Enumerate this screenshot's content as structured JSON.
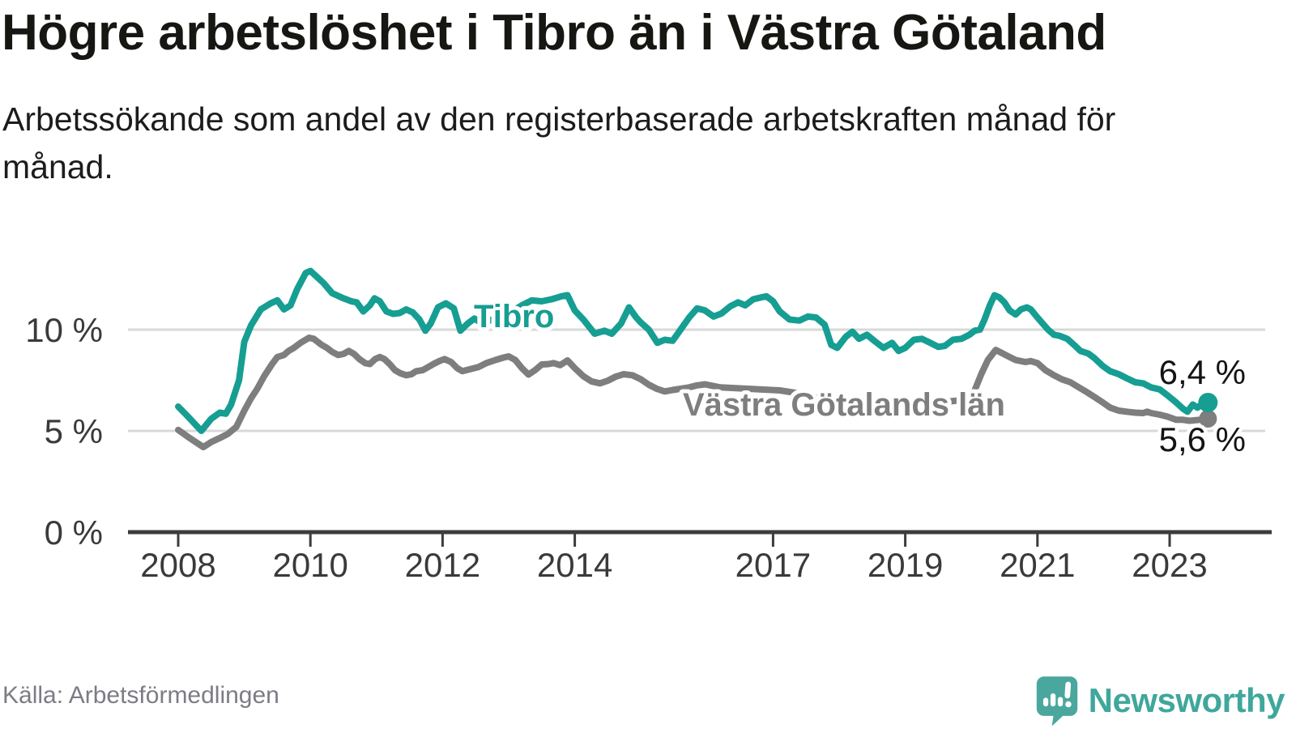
{
  "header": {
    "title": "Högre arbetslöshet i Tibro än i Västra Götaland",
    "subtitle": "Arbetssökande som andel av den registerbaserade arbetskraften månad för månad."
  },
  "chart_data": {
    "type": "line",
    "title": "Högre arbetslöshet i Tibro än i Västra Götaland",
    "xlabel": "",
    "ylabel": "Arbetssökande som andel av den registerbaserade arbetskraften (%)",
    "unit": "%",
    "grid": "horizontal",
    "legend_position": "labels-on-lines",
    "xlim": [
      2007.7,
      2024.0
    ],
    "ylim": [
      0,
      13.5
    ],
    "x_ticks": [
      {
        "year": 2008,
        "label": "2008"
      },
      {
        "year": 2010,
        "label": "2010"
      },
      {
        "year": 2012,
        "label": "2012"
      },
      {
        "year": 2014,
        "label": "2014"
      },
      {
        "year": 2017,
        "label": "2017"
      },
      {
        "year": 2019,
        "label": "2019"
      },
      {
        "year": 2021,
        "label": "2021"
      },
      {
        "year": 2023,
        "label": "2023"
      }
    ],
    "y_ticks": [
      {
        "value": 0,
        "label": "0 %"
      },
      {
        "value": 5,
        "label": "5 %"
      },
      {
        "value": 10,
        "label": "10 %"
      }
    ],
    "series": [
      {
        "name": "Tibro",
        "color": "#169e92",
        "end_label": "6,4 %",
        "end_value": 6.4,
        "points": [
          [
            2008.0,
            6.2
          ],
          [
            2008.15,
            5.7
          ],
          [
            2008.35,
            5.0
          ],
          [
            2008.5,
            5.6
          ],
          [
            2008.63,
            5.9
          ],
          [
            2008.72,
            5.85
          ],
          [
            2008.8,
            6.3
          ],
          [
            2008.92,
            7.5
          ],
          [
            2009.0,
            9.4
          ],
          [
            2009.1,
            10.2
          ],
          [
            2009.25,
            11.0
          ],
          [
            2009.4,
            11.3
          ],
          [
            2009.5,
            11.45
          ],
          [
            2009.6,
            11.0
          ],
          [
            2009.7,
            11.2
          ],
          [
            2009.8,
            12.0
          ],
          [
            2009.93,
            12.8
          ],
          [
            2010.0,
            12.9
          ],
          [
            2010.1,
            12.6
          ],
          [
            2010.2,
            12.3
          ],
          [
            2010.33,
            11.8
          ],
          [
            2010.5,
            11.55
          ],
          [
            2010.62,
            11.4
          ],
          [
            2010.7,
            11.35
          ],
          [
            2010.8,
            10.9
          ],
          [
            2010.9,
            11.2
          ],
          [
            2010.97,
            11.55
          ],
          [
            2011.05,
            11.4
          ],
          [
            2011.15,
            10.9
          ],
          [
            2011.25,
            10.78
          ],
          [
            2011.35,
            10.82
          ],
          [
            2011.45,
            11.0
          ],
          [
            2011.55,
            10.85
          ],
          [
            2011.65,
            10.5
          ],
          [
            2011.74,
            9.95
          ],
          [
            2011.82,
            10.3
          ],
          [
            2011.93,
            11.1
          ],
          [
            2012.05,
            11.3
          ],
          [
            2012.17,
            11.05
          ],
          [
            2012.27,
            9.95
          ],
          [
            2012.38,
            10.3
          ],
          [
            2012.48,
            10.55
          ],
          [
            2012.6,
            10.3
          ],
          [
            2012.75,
            10.5
          ],
          [
            2012.9,
            10.7
          ],
          [
            2013.05,
            10.9
          ],
          [
            2013.2,
            11.2
          ],
          [
            2013.35,
            11.45
          ],
          [
            2013.5,
            11.4
          ],
          [
            2013.65,
            11.5
          ],
          [
            2013.8,
            11.65
          ],
          [
            2013.89,
            11.7
          ],
          [
            2014.0,
            10.95
          ],
          [
            2014.13,
            10.5
          ],
          [
            2014.3,
            9.8
          ],
          [
            2014.45,
            9.95
          ],
          [
            2014.56,
            9.8
          ],
          [
            2014.7,
            10.3
          ],
          [
            2014.82,
            11.1
          ],
          [
            2014.93,
            10.6
          ],
          [
            2015.0,
            10.35
          ],
          [
            2015.12,
            10.0
          ],
          [
            2015.25,
            9.35
          ],
          [
            2015.36,
            9.5
          ],
          [
            2015.48,
            9.45
          ],
          [
            2015.6,
            10.0
          ],
          [
            2015.73,
            10.6
          ],
          [
            2015.85,
            11.05
          ],
          [
            2015.97,
            10.95
          ],
          [
            2016.1,
            10.65
          ],
          [
            2016.22,
            10.8
          ],
          [
            2016.35,
            11.15
          ],
          [
            2016.47,
            11.35
          ],
          [
            2016.58,
            11.2
          ],
          [
            2016.7,
            11.5
          ],
          [
            2016.83,
            11.6
          ],
          [
            2016.9,
            11.65
          ],
          [
            2017.0,
            11.4
          ],
          [
            2017.1,
            10.9
          ],
          [
            2017.25,
            10.5
          ],
          [
            2017.4,
            10.45
          ],
          [
            2017.53,
            10.65
          ],
          [
            2017.65,
            10.6
          ],
          [
            2017.78,
            10.25
          ],
          [
            2017.88,
            9.25
          ],
          [
            2017.97,
            9.1
          ],
          [
            2018.1,
            9.65
          ],
          [
            2018.2,
            9.9
          ],
          [
            2018.3,
            9.55
          ],
          [
            2018.42,
            9.75
          ],
          [
            2018.55,
            9.4
          ],
          [
            2018.67,
            9.1
          ],
          [
            2018.8,
            9.35
          ],
          [
            2018.9,
            8.95
          ],
          [
            2019.0,
            9.1
          ],
          [
            2019.13,
            9.5
          ],
          [
            2019.25,
            9.55
          ],
          [
            2019.38,
            9.35
          ],
          [
            2019.5,
            9.15
          ],
          [
            2019.6,
            9.2
          ],
          [
            2019.72,
            9.5
          ],
          [
            2019.85,
            9.55
          ],
          [
            2019.97,
            9.75
          ],
          [
            2020.05,
            9.95
          ],
          [
            2020.13,
            10.0
          ],
          [
            2020.2,
            10.5
          ],
          [
            2020.28,
            11.2
          ],
          [
            2020.35,
            11.7
          ],
          [
            2020.42,
            11.6
          ],
          [
            2020.5,
            11.35
          ],
          [
            2020.58,
            10.95
          ],
          [
            2020.67,
            10.75
          ],
          [
            2020.75,
            11.0
          ],
          [
            2020.84,
            11.1
          ],
          [
            2020.9,
            11.0
          ],
          [
            2021.0,
            10.6
          ],
          [
            2021.08,
            10.3
          ],
          [
            2021.16,
            10.0
          ],
          [
            2021.25,
            9.75
          ],
          [
            2021.33,
            9.7
          ],
          [
            2021.45,
            9.55
          ],
          [
            2021.57,
            9.2
          ],
          [
            2021.65,
            8.95
          ],
          [
            2021.77,
            8.82
          ],
          [
            2021.86,
            8.6
          ],
          [
            2021.99,
            8.2
          ],
          [
            2022.1,
            7.95
          ],
          [
            2022.23,
            7.8
          ],
          [
            2022.35,
            7.6
          ],
          [
            2022.48,
            7.4
          ],
          [
            2022.6,
            7.35
          ],
          [
            2022.72,
            7.15
          ],
          [
            2022.85,
            7.05
          ],
          [
            2022.97,
            6.75
          ],
          [
            2023.1,
            6.4
          ],
          [
            2023.2,
            6.1
          ],
          [
            2023.27,
            5.95
          ],
          [
            2023.35,
            6.3
          ],
          [
            2023.42,
            6.15
          ],
          [
            2023.5,
            6.35
          ],
          [
            2023.58,
            6.4
          ]
        ]
      },
      {
        "name": "Västra Götalands län",
        "color": "#7e7e7e",
        "end_label": "5,6 %",
        "end_value": 5.6,
        "points": [
          [
            2008.0,
            5.05
          ],
          [
            2008.15,
            4.7
          ],
          [
            2008.38,
            4.2
          ],
          [
            2008.5,
            4.45
          ],
          [
            2008.63,
            4.65
          ],
          [
            2008.75,
            4.85
          ],
          [
            2008.88,
            5.2
          ],
          [
            2009.0,
            6.0
          ],
          [
            2009.1,
            6.6
          ],
          [
            2009.2,
            7.1
          ],
          [
            2009.3,
            7.7
          ],
          [
            2009.42,
            8.3
          ],
          [
            2009.5,
            8.65
          ],
          [
            2009.6,
            8.75
          ],
          [
            2009.67,
            8.95
          ],
          [
            2009.75,
            9.1
          ],
          [
            2009.85,
            9.35
          ],
          [
            2009.98,
            9.6
          ],
          [
            2010.05,
            9.55
          ],
          [
            2010.17,
            9.25
          ],
          [
            2010.25,
            9.1
          ],
          [
            2010.33,
            8.9
          ],
          [
            2010.42,
            8.75
          ],
          [
            2010.5,
            8.8
          ],
          [
            2010.58,
            8.95
          ],
          [
            2010.66,
            8.8
          ],
          [
            2010.74,
            8.55
          ],
          [
            2010.83,
            8.35
          ],
          [
            2010.9,
            8.3
          ],
          [
            2010.98,
            8.55
          ],
          [
            2011.05,
            8.65
          ],
          [
            2011.12,
            8.55
          ],
          [
            2011.2,
            8.3
          ],
          [
            2011.28,
            8.0
          ],
          [
            2011.36,
            7.85
          ],
          [
            2011.45,
            7.75
          ],
          [
            2011.53,
            7.8
          ],
          [
            2011.6,
            7.95
          ],
          [
            2011.7,
            8.0
          ],
          [
            2011.78,
            8.15
          ],
          [
            2011.86,
            8.3
          ],
          [
            2011.95,
            8.45
          ],
          [
            2012.03,
            8.55
          ],
          [
            2012.13,
            8.4
          ],
          [
            2012.22,
            8.1
          ],
          [
            2012.3,
            7.95
          ],
          [
            2012.42,
            8.05
          ],
          [
            2012.54,
            8.15
          ],
          [
            2012.66,
            8.35
          ],
          [
            2012.8,
            8.5
          ],
          [
            2012.92,
            8.62
          ],
          [
            2013.0,
            8.68
          ],
          [
            2013.1,
            8.5
          ],
          [
            2013.2,
            8.1
          ],
          [
            2013.3,
            7.78
          ],
          [
            2013.4,
            8.0
          ],
          [
            2013.5,
            8.28
          ],
          [
            2013.6,
            8.3
          ],
          [
            2013.68,
            8.35
          ],
          [
            2013.78,
            8.25
          ],
          [
            2013.89,
            8.48
          ],
          [
            2014.0,
            8.1
          ],
          [
            2014.13,
            7.7
          ],
          [
            2014.25,
            7.45
          ],
          [
            2014.38,
            7.35
          ],
          [
            2014.5,
            7.48
          ],
          [
            2014.62,
            7.68
          ],
          [
            2014.74,
            7.8
          ],
          [
            2014.87,
            7.75
          ],
          [
            2015.0,
            7.55
          ],
          [
            2015.12,
            7.28
          ],
          [
            2015.24,
            7.08
          ],
          [
            2015.36,
            6.95
          ],
          [
            2015.48,
            7.02
          ],
          [
            2015.6,
            7.08
          ],
          [
            2015.73,
            7.15
          ],
          [
            2015.85,
            7.25
          ],
          [
            2015.97,
            7.3
          ],
          [
            2016.2,
            7.15
          ],
          [
            2016.5,
            7.1
          ],
          [
            2016.8,
            7.05
          ],
          [
            2017.1,
            7.0
          ],
          [
            2017.4,
            6.85
          ],
          [
            2017.7,
            6.6
          ],
          [
            2018.0,
            6.45
          ],
          [
            2018.3,
            6.4
          ],
          [
            2018.6,
            6.3
          ],
          [
            2018.9,
            6.25
          ],
          [
            2019.2,
            6.3
          ],
          [
            2019.5,
            6.4
          ],
          [
            2019.8,
            6.5
          ],
          [
            2019.95,
            6.6
          ],
          [
            2020.05,
            7.0
          ],
          [
            2020.15,
            7.8
          ],
          [
            2020.25,
            8.5
          ],
          [
            2020.37,
            9.0
          ],
          [
            2020.46,
            8.85
          ],
          [
            2020.58,
            8.65
          ],
          [
            2020.67,
            8.5
          ],
          [
            2020.75,
            8.45
          ],
          [
            2020.82,
            8.4
          ],
          [
            2020.9,
            8.45
          ],
          [
            2021.0,
            8.35
          ],
          [
            2021.12,
            8.0
          ],
          [
            2021.25,
            7.75
          ],
          [
            2021.37,
            7.55
          ],
          [
            2021.5,
            7.4
          ],
          [
            2021.6,
            7.2
          ],
          [
            2021.73,
            6.95
          ],
          [
            2021.85,
            6.7
          ],
          [
            2021.99,
            6.4
          ],
          [
            2022.1,
            6.15
          ],
          [
            2022.23,
            6.0
          ],
          [
            2022.35,
            5.95
          ],
          [
            2022.48,
            5.9
          ],
          [
            2022.6,
            5.88
          ],
          [
            2022.66,
            5.95
          ],
          [
            2022.72,
            5.88
          ],
          [
            2022.85,
            5.8
          ],
          [
            2022.97,
            5.7
          ],
          [
            2023.1,
            5.55
          ],
          [
            2023.2,
            5.55
          ],
          [
            2023.3,
            5.5
          ],
          [
            2023.45,
            5.55
          ],
          [
            2023.58,
            5.6
          ]
        ]
      }
    ]
  },
  "footer": {
    "source": "Källa: Arbetsförmedlingen",
    "brand": "Newsworthy",
    "brand_color": "#3fa79b"
  }
}
